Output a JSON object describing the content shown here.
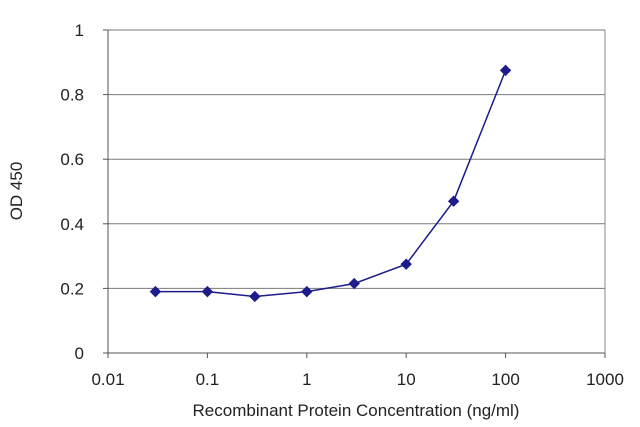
{
  "chart_data": {
    "type": "line",
    "title": "",
    "xlabel": "Recombinant Protein Concentration (ng/ml)",
    "ylabel": "OD 450",
    "x_scale": "log",
    "xlim": [
      0.01,
      1000
    ],
    "ylim": [
      0,
      1
    ],
    "x_ticks": [
      0.01,
      0.1,
      1,
      10,
      100,
      1000
    ],
    "x_tick_labels": [
      "0.01",
      "0.1",
      "1",
      "10",
      "100",
      "1000"
    ],
    "y_ticks": [
      0,
      0.2,
      0.4,
      0.6,
      0.8,
      1
    ],
    "y_tick_labels": [
      "0",
      "0.2",
      "0.4",
      "0.6",
      "0.8",
      "1"
    ],
    "grid": "horizontal",
    "legend": "none",
    "series": [
      {
        "color": "#1c1c8c",
        "marker": "diamond",
        "x": [
          0.03,
          0.1,
          0.3,
          1,
          3,
          10,
          30,
          100
        ],
        "y": [
          0.19,
          0.19,
          0.175,
          0.19,
          0.215,
          0.275,
          0.47,
          0.875
        ]
      }
    ]
  }
}
